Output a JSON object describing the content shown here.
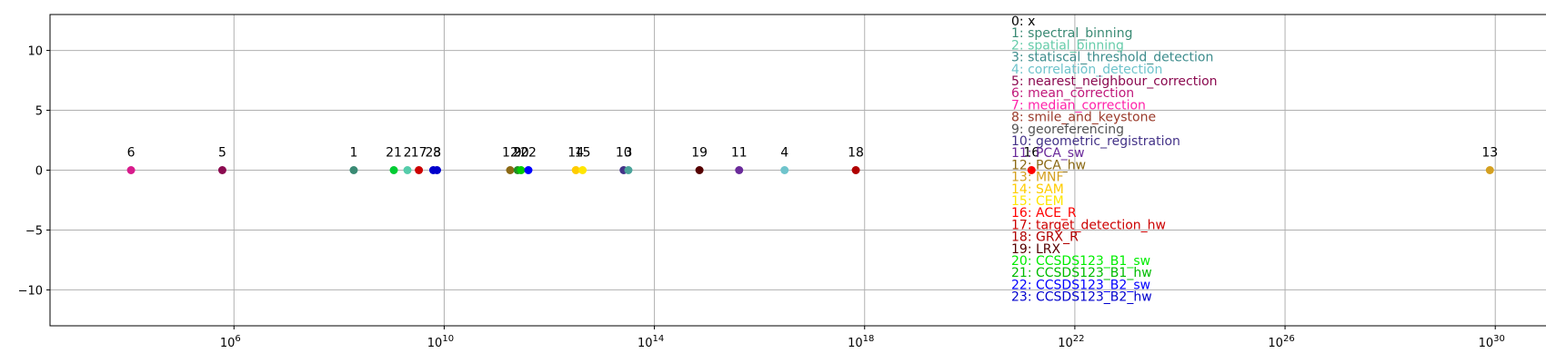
{
  "chart_data": {
    "type": "scatter",
    "title": "",
    "xlabel": "",
    "ylabel": "",
    "x_scale": "log",
    "xlim": [
      316.0,
      1e+31
    ],
    "ylim": [
      -13,
      13
    ],
    "grid": true,
    "x_ticks": [
      {
        "value": 1000000.0,
        "base": "10",
        "exp": "6"
      },
      {
        "value": 10000000000.0,
        "base": "10",
        "exp": "10"
      },
      {
        "value": 100000000000000.0,
        "base": "10",
        "exp": "14"
      },
      {
        "value": 1e+18,
        "base": "10",
        "exp": "18"
      },
      {
        "value": 1e+22,
        "base": "10",
        "exp": "22"
      },
      {
        "value": 1e+26,
        "base": "10",
        "exp": "26"
      },
      {
        "value": 1e+30,
        "base": "10",
        "exp": "30"
      }
    ],
    "y_ticks": [
      {
        "value": 10,
        "label": "10"
      },
      {
        "value": 5,
        "label": "5"
      },
      {
        "value": 0,
        "label": "0"
      },
      {
        "value": -5,
        "label": "−5"
      },
      {
        "value": -10,
        "label": "−10"
      }
    ],
    "points": [
      {
        "label": "6",
        "x": 11000.0,
        "y": 0,
        "color": "#d81b8c"
      },
      {
        "label": "5",
        "x": 600000.0,
        "y": 0,
        "color": "#8b0a50"
      },
      {
        "label": "1",
        "x": 190000000.0,
        "y": 0,
        "color": "#3a8a74"
      },
      {
        "label": "21",
        "x": 1100000000.0,
        "y": 0,
        "color": "#00cc33"
      },
      {
        "label": "2",
        "x": 2000000000.0,
        "y": 0,
        "color": "#55ccaa"
      },
      {
        "label": "17",
        "x": 3300000000.0,
        "y": 0,
        "color": "#cc0000"
      },
      {
        "label": "23",
        "x": 6200000000.0,
        "y": 0,
        "color": "#0000cc"
      },
      {
        "label": "8",
        "x": 7300000000.0,
        "y": 0,
        "color": "#0000cc"
      },
      {
        "label": "12",
        "x": 180000000000.0,
        "y": 0,
        "color": "#8b6914"
      },
      {
        "label": "9",
        "x": 250000000000.0,
        "y": 0,
        "color": "#228b22"
      },
      {
        "label": "20",
        "x": 290000000000.0,
        "y": 0,
        "color": "#00cc00"
      },
      {
        "label": "22",
        "x": 400000000000.0,
        "y": 0,
        "color": "#0000ff"
      },
      {
        "label": "14",
        "x": 3200000000000.0,
        "y": 0,
        "color": "#ffcc00"
      },
      {
        "label": "15",
        "x": 4300000000000.0,
        "y": 0,
        "color": "#ffe600"
      },
      {
        "label": "10",
        "x": 26000000000000.0,
        "y": 0,
        "color": "#443388"
      },
      {
        "label": "3",
        "x": 32000000000000.0,
        "y": 0,
        "color": "#4aa39a"
      },
      {
        "label": "19",
        "x": 720000000000000.0,
        "y": 0,
        "color": "#550000"
      },
      {
        "label": "11",
        "x": 4100000000000000.0,
        "y": 0,
        "color": "#6a2a9a"
      },
      {
        "label": "4",
        "x": 3e+16,
        "y": 0,
        "color": "#6fc4cc"
      },
      {
        "label": "18",
        "x": 6.8e+17,
        "y": 0,
        "color": "#b00000"
      },
      {
        "label": "16",
        "x": 1.5e+21,
        "y": 0,
        "color": "#ff0000"
      },
      {
        "label": "13",
        "x": 7.9e+29,
        "y": 0,
        "color": "#d4a020"
      }
    ],
    "legend": {
      "placement": "upper-center",
      "entries": [
        {
          "text": "0: x",
          "color": "#000000"
        },
        {
          "text": "1: spectral_binning",
          "color": "#3a8a74"
        },
        {
          "text": "2: spatial_binning",
          "color": "#66ccaa"
        },
        {
          "text": "3: statiscal_threshold_detection",
          "color": "#3d8c8c"
        },
        {
          "text": "4: correlation_detection",
          "color": "#6fc4cc"
        },
        {
          "text": "5: nearest_neighbour_correction",
          "color": "#8b0a50"
        },
        {
          "text": "6: mean_correction",
          "color": "#c0187a"
        },
        {
          "text": "7: median_correction",
          "color": "#ff22aa"
        },
        {
          "text": "8: smile_and_keystone",
          "color": "#9a3a2a"
        },
        {
          "text": "9: georeferencing",
          "color": "#555555"
        },
        {
          "text": "10: geometric_registration",
          "color": "#443388"
        },
        {
          "text": "11: PCA_sw",
          "color": "#6a2a9a"
        },
        {
          "text": "12: PCA_hw",
          "color": "#8b6914"
        },
        {
          "text": "13: MNF",
          "color": "#d4a020"
        },
        {
          "text": "14: SAM",
          "color": "#ffcc00"
        },
        {
          "text": "15: CEM",
          "color": "#ffe600"
        },
        {
          "text": "16: ACE_R",
          "color": "#ff0000"
        },
        {
          "text": "17: target_detection_hw",
          "color": "#cc0000"
        },
        {
          "text": "18: GRX_R",
          "color": "#b00000"
        },
        {
          "text": "19: LRX",
          "color": "#550000"
        },
        {
          "text": "20: CCSDS123_B1_sw",
          "color": "#00ee00"
        },
        {
          "text": "21: CCSDS123_B1_hw",
          "color": "#00bb00"
        },
        {
          "text": "22: CCSDS123_B2_sw",
          "color": "#0000ff"
        },
        {
          "text": "23: CCSDS123_B2_hw",
          "color": "#0000cc"
        }
      ]
    }
  }
}
